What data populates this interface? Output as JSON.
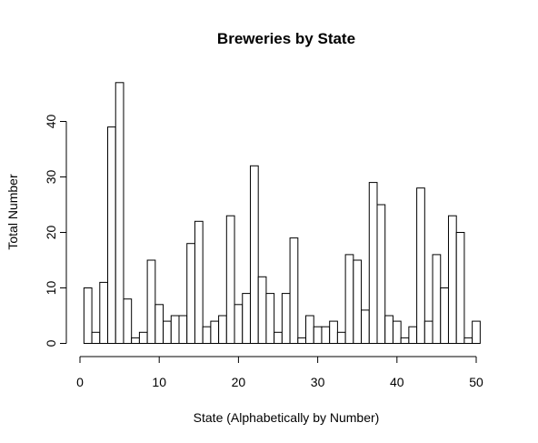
{
  "chart_data": {
    "type": "bar",
    "title": "Breweries by State",
    "xlabel": "State (Alphabetically by Number)",
    "ylabel": "Total Number",
    "x_ticks": [
      "0",
      "10",
      "20",
      "30",
      "40",
      "50"
    ],
    "y_ticks": [
      "0",
      "10",
      "20",
      "30",
      "40"
    ],
    "xlim": [
      0,
      51
    ],
    "ylim": [
      0,
      47
    ],
    "categories": [
      1,
      2,
      3,
      4,
      5,
      6,
      7,
      8,
      9,
      10,
      11,
      12,
      13,
      14,
      15,
      16,
      17,
      18,
      19,
      20,
      21,
      22,
      23,
      24,
      25,
      26,
      27,
      28,
      29,
      30,
      31,
      32,
      33,
      34,
      35,
      36,
      37,
      38,
      39,
      40,
      41,
      42,
      43,
      44,
      45,
      46,
      47,
      48,
      49,
      50,
      51
    ],
    "values": [
      10,
      2,
      11,
      39,
      47,
      8,
      1,
      2,
      15,
      7,
      4,
      5,
      5,
      18,
      22,
      3,
      4,
      5,
      23,
      7,
      9,
      32,
      12,
      9,
      2,
      9,
      19,
      1,
      5,
      3,
      3,
      4,
      2,
      16,
      15,
      6,
      29,
      25,
      5,
      4,
      1,
      3,
      28,
      4,
      16,
      10,
      23,
      20,
      1,
      4,
      0
    ],
    "bar_fill": "#ffffff",
    "bar_stroke": "#000000",
    "grid": false
  }
}
